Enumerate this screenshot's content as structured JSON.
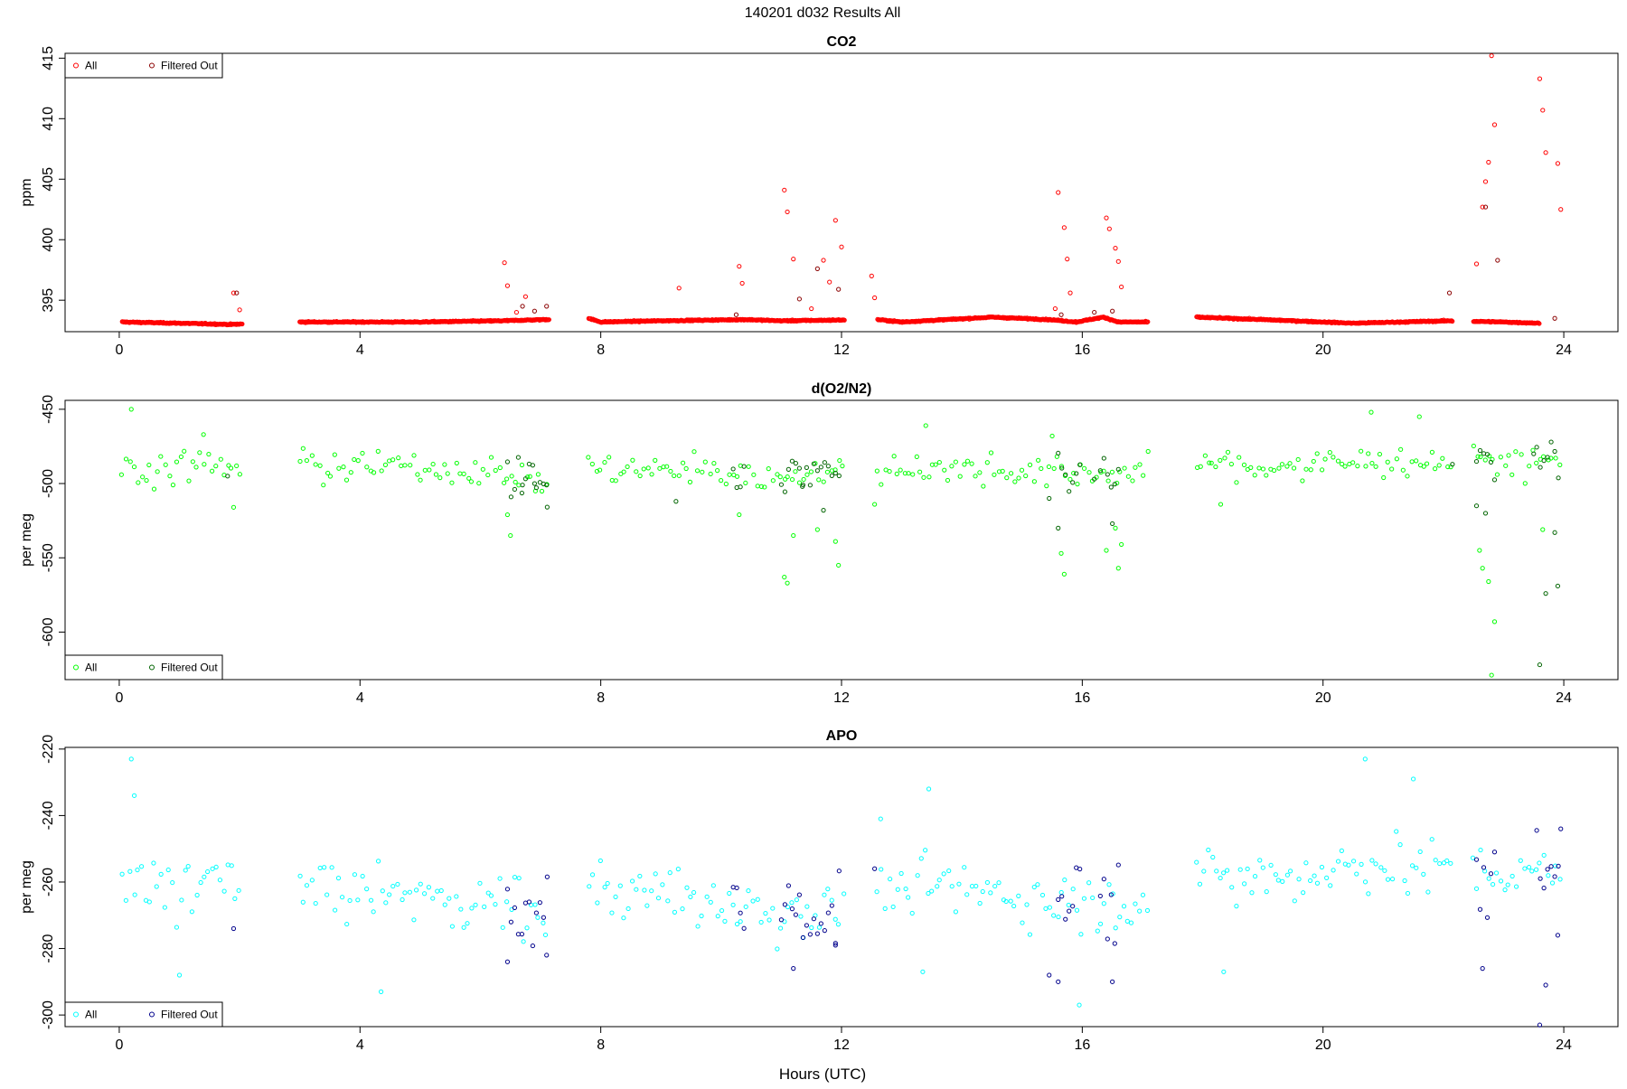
{
  "figure": {
    "title": "140201   d032   Results All",
    "xlabel": "Hours (UTC)"
  },
  "chart_data": [
    {
      "type": "scatter",
      "title": "CO2",
      "xlabel": "",
      "ylabel": "ppm",
      "xlim": [
        -0.9,
        24.9
      ],
      "ylim": [
        392.4,
        415.4
      ],
      "xticks": [
        0,
        4,
        8,
        12,
        16,
        20,
        24
      ],
      "yticks": [
        395,
        400,
        405,
        410,
        415
      ],
      "grid": false,
      "legend_position": "top-left",
      "legend": [
        "All",
        "Filtered Out"
      ],
      "colors": {
        "all": "#ff0000",
        "filtered": "#8b0000"
      },
      "baseline": [
        [
          0.05,
          393.2
        ],
        [
          1.0,
          393.1
        ],
        [
          1.85,
          393.0
        ],
        [
          3.0,
          393.2
        ],
        [
          5.0,
          393.2
        ],
        [
          6.35,
          393.3
        ],
        [
          7.8,
          393.5
        ],
        [
          8.0,
          393.2
        ],
        [
          9.0,
          393.3
        ],
        [
          10.4,
          393.4
        ],
        [
          11.0,
          393.3
        ],
        [
          12.6,
          393.4
        ],
        [
          13.0,
          393.2
        ],
        [
          14.5,
          393.6
        ],
        [
          15.45,
          393.4
        ],
        [
          15.9,
          393.2
        ],
        [
          16.35,
          393.6
        ],
        [
          16.6,
          393.2
        ],
        [
          17.1,
          393.2
        ],
        [
          17.9,
          393.6
        ],
        [
          19.0,
          393.4
        ],
        [
          20.5,
          393.1
        ],
        [
          22.1,
          393.3
        ],
        [
          23.0,
          393.2
        ],
        [
          23.6,
          393.1
        ]
      ],
      "series": [
        {
          "name": "All",
          "points": [
            [
              1.9,
              395.6
            ],
            [
              2.0,
              394.2
            ],
            [
              6.4,
              398.1
            ],
            [
              6.45,
              396.2
            ],
            [
              6.6,
              394.0
            ],
            [
              6.75,
              395.3
            ],
            [
              9.3,
              396.0
            ],
            [
              10.3,
              397.8
            ],
            [
              10.35,
              396.4
            ],
            [
              11.05,
              404.1
            ],
            [
              11.1,
              402.3
            ],
            [
              11.2,
              398.4
            ],
            [
              11.5,
              394.3
            ],
            [
              11.7,
              398.3
            ],
            [
              11.8,
              396.5
            ],
            [
              11.9,
              401.6
            ],
            [
              12.0,
              399.4
            ],
            [
              12.5,
              397.0
            ],
            [
              12.55,
              395.2
            ],
            [
              15.55,
              394.3
            ],
            [
              15.6,
              403.9
            ],
            [
              15.7,
              401.0
            ],
            [
              15.75,
              398.4
            ],
            [
              15.8,
              395.6
            ],
            [
              16.4,
              401.8
            ],
            [
              16.45,
              400.9
            ],
            [
              16.55,
              399.3
            ],
            [
              16.6,
              398.2
            ],
            [
              16.65,
              396.1
            ],
            [
              22.55,
              398.0
            ],
            [
              22.65,
              402.7
            ],
            [
              22.7,
              404.8
            ],
            [
              22.75,
              406.4
            ],
            [
              22.8,
              415.2
            ],
            [
              22.85,
              409.5
            ],
            [
              23.6,
              413.3
            ],
            [
              23.65,
              410.7
            ],
            [
              23.7,
              407.2
            ],
            [
              23.9,
              406.3
            ],
            [
              23.95,
              402.5
            ]
          ]
        },
        {
          "name": "Filtered Out",
          "points": [
            [
              1.95,
              395.6
            ],
            [
              6.7,
              394.5
            ],
            [
              6.9,
              394.1
            ],
            [
              7.1,
              394.5
            ],
            [
              10.25,
              393.8
            ],
            [
              11.3,
              395.1
            ],
            [
              11.6,
              397.6
            ],
            [
              11.95,
              395.9
            ],
            [
              15.65,
              393.8
            ],
            [
              16.2,
              394.0
            ],
            [
              16.5,
              394.1
            ],
            [
              22.1,
              395.6
            ],
            [
              22.7,
              402.7
            ],
            [
              22.9,
              398.3
            ],
            [
              23.85,
              393.5
            ]
          ]
        }
      ]
    },
    {
      "type": "scatter",
      "title": "d(O2/N2)",
      "xlabel": "",
      "ylabel": "per meg",
      "xlim": [
        -0.9,
        24.9
      ],
      "ylim": [
        -632,
        -444
      ],
      "xticks": [
        0,
        4,
        8,
        12,
        16,
        20,
        24
      ],
      "yticks": [
        -450,
        -500,
        -550,
        -600
      ],
      "grid": false,
      "legend_position": "bottom-left",
      "legend": [
        "All",
        "Filtered Out"
      ],
      "colors": {
        "all": "#00ff00",
        "filtered": "#006400"
      },
      "points_base": [
        [
          0.05,
          -490
        ],
        [
          2.05,
          -488
        ],
        [
          3.0,
          -488
        ],
        [
          5.5,
          -490
        ],
        [
          6.3,
          -493
        ],
        [
          7.2,
          -500
        ],
        [
          7.8,
          -490
        ],
        [
          9.0,
          -490
        ],
        [
          10.5,
          -495
        ],
        [
          12.05,
          -493
        ],
        [
          12.6,
          -490
        ],
        [
          14.5,
          -490
        ],
        [
          15.5,
          -494
        ],
        [
          17.1,
          -492
        ],
        [
          17.9,
          -485
        ],
        [
          19.0,
          -490
        ],
        [
          21.0,
          -485
        ],
        [
          22.1,
          -485
        ],
        [
          22.5,
          -485
        ],
        [
          23.95,
          -485
        ]
      ],
      "series": [
        {
          "name": "All",
          "points": [
            [
              0.2,
              -450
            ],
            [
              1.4,
              -467
            ],
            [
              1.9,
              -516
            ],
            [
              6.5,
              -535
            ],
            [
              6.45,
              -521
            ],
            [
              10.3,
              -521
            ],
            [
              11.1,
              -567
            ],
            [
              11.05,
              -563
            ],
            [
              11.2,
              -535
            ],
            [
              11.6,
              -531
            ],
            [
              11.9,
              -539
            ],
            [
              11.95,
              -555
            ],
            [
              12.55,
              -514
            ],
            [
              13.4,
              -461
            ],
            [
              15.5,
              -468
            ],
            [
              15.65,
              -547
            ],
            [
              15.7,
              -561
            ],
            [
              16.4,
              -545
            ],
            [
              16.55,
              -530
            ],
            [
              16.6,
              -557
            ],
            [
              16.65,
              -541
            ],
            [
              18.3,
              -514
            ],
            [
              20.8,
              -452
            ],
            [
              21.6,
              -455
            ],
            [
              22.6,
              -545
            ],
            [
              22.65,
              -557
            ],
            [
              22.75,
              -566
            ],
            [
              22.85,
              -593
            ],
            [
              22.8,
              -629
            ],
            [
              23.65,
              -531
            ]
          ]
        },
        {
          "name": "Filtered Out",
          "points": [
            [
              1.8,
              -495
            ],
            [
              6.7,
              -501
            ],
            [
              6.9,
              -500
            ],
            [
              7.1,
              -501
            ],
            [
              9.25,
              -512
            ],
            [
              11.35,
              -502
            ],
            [
              11.7,
              -518
            ],
            [
              15.45,
              -510
            ],
            [
              15.6,
              -530
            ],
            [
              16.2,
              -497
            ],
            [
              16.5,
              -527
            ],
            [
              22.15,
              -487
            ],
            [
              22.55,
              -515
            ],
            [
              22.7,
              -520
            ],
            [
              23.6,
              -622
            ],
            [
              23.7,
              -574
            ],
            [
              23.9,
              -569
            ],
            [
              23.85,
              -533
            ],
            [
              23.5,
              -480
            ]
          ]
        }
      ]
    },
    {
      "type": "scatter",
      "title": "APO",
      "xlabel": "Hours (UTC)",
      "ylabel": "per meg",
      "xlim": [
        -0.9,
        24.9
      ],
      "ylim": [
        -303.5,
        -219.5
      ],
      "xticks": [
        0,
        4,
        8,
        12,
        16,
        20,
        24
      ],
      "yticks": [
        -220,
        -240,
        -260,
        -280,
        -300
      ],
      "grid": false,
      "legend_position": "bottom-left",
      "legend": [
        "All",
        "Filtered Out"
      ],
      "colors": {
        "all": "#00ffff",
        "filtered": "#00008b"
      },
      "points_base": [
        [
          0.05,
          -263
        ],
        [
          2.05,
          -260
        ],
        [
          3.0,
          -262
        ],
        [
          5.5,
          -265
        ],
        [
          6.3,
          -266
        ],
        [
          7.2,
          -270
        ],
        [
          7.8,
          -262
        ],
        [
          9.0,
          -264
        ],
        [
          10.5,
          -268
        ],
        [
          12.05,
          -268
        ],
        [
          12.6,
          -262
        ],
        [
          14.5,
          -263
        ],
        [
          15.5,
          -266
        ],
        [
          17.1,
          -266
        ],
        [
          17.9,
          -260
        ],
        [
          19.0,
          -258
        ],
        [
          21.0,
          -254
        ],
        [
          22.1,
          -256
        ],
        [
          22.5,
          -258
        ],
        [
          23.95,
          -258
        ]
      ],
      "series": [
        {
          "name": "All",
          "points": [
            [
              0.2,
              -223
            ],
            [
              0.25,
              -234
            ],
            [
              1.0,
              -288
            ],
            [
              4.35,
              -293
            ],
            [
              15.95,
              -297
            ],
            [
              20.7,
              -223
            ],
            [
              21.5,
              -229
            ],
            [
              18.35,
              -287
            ],
            [
              13.35,
              -287
            ],
            [
              13.45,
              -232
            ],
            [
              12.65,
              -241
            ]
          ]
        },
        {
          "name": "Filtered Out",
          "points": [
            [
              1.9,
              -274
            ],
            [
              6.45,
              -284
            ],
            [
              7.1,
              -282
            ],
            [
              11.2,
              -286
            ],
            [
              11.9,
              -279
            ],
            [
              15.45,
              -288
            ],
            [
              15.6,
              -290
            ],
            [
              16.5,
              -290
            ],
            [
              22.65,
              -286
            ],
            [
              23.6,
              -303
            ],
            [
              23.7,
              -291
            ],
            [
              23.9,
              -276
            ],
            [
              23.95,
              -244
            ],
            [
              12.55,
              -256
            ]
          ]
        }
      ]
    }
  ]
}
